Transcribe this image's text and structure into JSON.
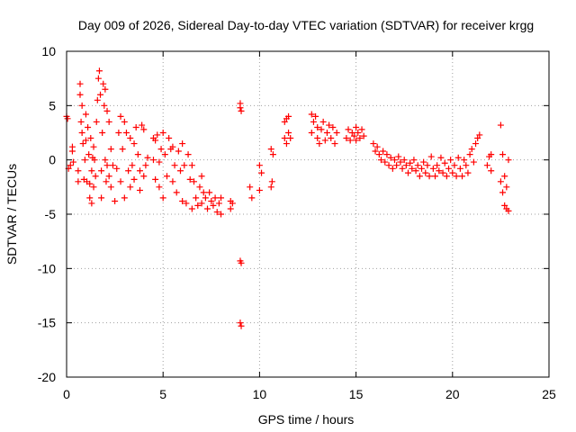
{
  "chart_data": {
    "type": "scatter",
    "title": "Day 009 of 2026, Sidereal Day-to-day VTEC variation (SDTVAR) for receiver krgg",
    "xlabel": "GPS time / hours",
    "ylabel": "SDTVAR / TECUs",
    "xlim": [
      0,
      25
    ],
    "ylim": [
      -20,
      10
    ],
    "xticks": [
      0,
      5,
      10,
      15,
      20,
      25
    ],
    "yticks": [
      -20,
      -15,
      -10,
      -5,
      0,
      5,
      10
    ],
    "grid": true,
    "marker": "plus",
    "color": "#ff0000",
    "series": [
      {
        "name": "SDTVAR",
        "points": [
          [
            0.0,
            4.0
          ],
          [
            0.05,
            3.8
          ],
          [
            0.1,
            -0.8
          ],
          [
            0.2,
            -0.5
          ],
          [
            0.3,
            0.8
          ],
          [
            0.3,
            1.2
          ],
          [
            0.35,
            -0.2
          ],
          [
            0.6,
            -1.0
          ],
          [
            0.6,
            -2.0
          ],
          [
            0.7,
            7.0
          ],
          [
            0.7,
            6.0
          ],
          [
            0.75,
            3.5
          ],
          [
            0.8,
            5.0
          ],
          [
            0.8,
            2.5
          ],
          [
            0.85,
            1.5
          ],
          [
            0.9,
            -1.8
          ],
          [
            0.95,
            0.0
          ],
          [
            1.0,
            4.2
          ],
          [
            1.0,
            1.8
          ],
          [
            1.05,
            -2.0
          ],
          [
            1.1,
            3.0
          ],
          [
            1.15,
            0.5
          ],
          [
            1.2,
            -2.2
          ],
          [
            1.2,
            -3.5
          ],
          [
            1.25,
            2.0
          ],
          [
            1.3,
            -1.0
          ],
          [
            1.3,
            -4.0
          ],
          [
            1.35,
            0.2
          ],
          [
            1.4,
            1.2
          ],
          [
            1.4,
            -2.5
          ],
          [
            1.45,
            0.0
          ],
          [
            1.5,
            -1.5
          ],
          [
            1.55,
            3.5
          ],
          [
            1.6,
            5.5
          ],
          [
            1.65,
            7.5
          ],
          [
            1.7,
            8.2
          ],
          [
            1.75,
            6.0
          ],
          [
            1.8,
            -3.5
          ],
          [
            1.8,
            -1.0
          ],
          [
            1.85,
            2.5
          ],
          [
            1.9,
            7.0
          ],
          [
            1.95,
            5.0
          ],
          [
            2.0,
            6.5
          ],
          [
            2.0,
            0.0
          ],
          [
            2.05,
            -2.0
          ],
          [
            2.1,
            4.5
          ],
          [
            2.1,
            -0.5
          ],
          [
            2.2,
            3.5
          ],
          [
            2.2,
            -1.5
          ],
          [
            2.3,
            1.0
          ],
          [
            2.3,
            -2.5
          ],
          [
            2.4,
            -0.5
          ],
          [
            2.5,
            -3.8
          ],
          [
            2.6,
            -0.8
          ],
          [
            2.7,
            2.5
          ],
          [
            2.8,
            4.0
          ],
          [
            2.8,
            -2.0
          ],
          [
            2.9,
            1.0
          ],
          [
            3.0,
            -3.5
          ],
          [
            3.0,
            3.5
          ],
          [
            3.1,
            2.5
          ],
          [
            3.2,
            -1.0
          ],
          [
            3.3,
            2.0
          ],
          [
            3.3,
            -2.5
          ],
          [
            3.4,
            -0.5
          ],
          [
            3.5,
            1.5
          ],
          [
            3.5,
            -1.8
          ],
          [
            3.6,
            3.0
          ],
          [
            3.7,
            0.5
          ],
          [
            3.8,
            -1.0
          ],
          [
            3.8,
            -2.8
          ],
          [
            3.9,
            3.2
          ],
          [
            4.0,
            2.8
          ],
          [
            4.0,
            -1.5
          ],
          [
            4.1,
            -0.5
          ],
          [
            4.2,
            0.2
          ],
          [
            4.5,
            2.0
          ],
          [
            4.5,
            0.0
          ],
          [
            4.6,
            1.8
          ],
          [
            4.6,
            -1.8
          ],
          [
            4.7,
            2.3
          ],
          [
            4.8,
            -0.2
          ],
          [
            4.8,
            -2.5
          ],
          [
            4.9,
            1.0
          ],
          [
            5.0,
            2.5
          ],
          [
            5.0,
            -3.5
          ],
          [
            5.1,
            0.5
          ],
          [
            5.2,
            -1.5
          ],
          [
            5.3,
            2.0
          ],
          [
            5.4,
            1.0
          ],
          [
            5.5,
            1.2
          ],
          [
            5.5,
            -2.0
          ],
          [
            5.6,
            -0.5
          ],
          [
            5.7,
            -3.0
          ],
          [
            5.8,
            0.8
          ],
          [
            5.9,
            -1.0
          ],
          [
            6.0,
            1.5
          ],
          [
            6.0,
            -3.8
          ],
          [
            6.1,
            -0.5
          ],
          [
            6.2,
            -4.0
          ],
          [
            6.3,
            0.5
          ],
          [
            6.4,
            -1.8
          ],
          [
            6.5,
            -4.5
          ],
          [
            6.5,
            -0.5
          ],
          [
            6.6,
            -2.0
          ],
          [
            6.7,
            -3.5
          ],
          [
            6.8,
            -4.2
          ],
          [
            6.9,
            -2.5
          ],
          [
            7.0,
            -1.5
          ],
          [
            7.0,
            -4.0
          ],
          [
            7.1,
            -3.0
          ],
          [
            7.2,
            -3.5
          ],
          [
            7.3,
            -4.5
          ],
          [
            7.4,
            -3.0
          ],
          [
            7.5,
            -3.8
          ],
          [
            7.6,
            -4.2
          ],
          [
            7.7,
            -3.5
          ],
          [
            7.8,
            -4.8
          ],
          [
            7.9,
            -4.0
          ],
          [
            8.0,
            -5.0
          ],
          [
            8.0,
            -3.5
          ],
          [
            8.5,
            -3.8
          ],
          [
            8.5,
            -4.5
          ],
          [
            8.6,
            -4.0
          ],
          [
            9.0,
            5.2
          ],
          [
            9.0,
            4.8
          ],
          [
            9.05,
            4.5
          ],
          [
            9.0,
            -9.3
          ],
          [
            9.05,
            -9.5
          ],
          [
            9.0,
            -15.0
          ],
          [
            9.05,
            -15.3
          ],
          [
            9.5,
            -2.5
          ],
          [
            9.6,
            -3.5
          ],
          [
            10.0,
            -0.5
          ],
          [
            10.0,
            -2.8
          ],
          [
            10.1,
            -1.2
          ],
          [
            10.6,
            1.0
          ],
          [
            10.6,
            -2.5
          ],
          [
            10.7,
            0.5
          ],
          [
            10.65,
            -2.0
          ],
          [
            11.3,
            2.0
          ],
          [
            11.3,
            3.5
          ],
          [
            11.4,
            1.5
          ],
          [
            11.4,
            3.8
          ],
          [
            11.5,
            2.5
          ],
          [
            11.5,
            4.0
          ],
          [
            11.6,
            2.0
          ],
          [
            12.7,
            4.2
          ],
          [
            12.7,
            2.5
          ],
          [
            12.8,
            3.5
          ],
          [
            12.9,
            4.0
          ],
          [
            13.0,
            2.0
          ],
          [
            13.0,
            3.0
          ],
          [
            13.1,
            1.5
          ],
          [
            13.2,
            2.8
          ],
          [
            13.3,
            3.5
          ],
          [
            13.4,
            1.8
          ],
          [
            13.5,
            2.5
          ],
          [
            13.6,
            3.2
          ],
          [
            13.7,
            2.0
          ],
          [
            13.8,
            3.0
          ],
          [
            13.9,
            1.5
          ],
          [
            14.0,
            2.5
          ],
          [
            14.5,
            2.0
          ],
          [
            14.6,
            2.8
          ],
          [
            14.7,
            1.8
          ],
          [
            14.8,
            2.5
          ],
          [
            14.9,
            2.2
          ],
          [
            15.0,
            3.0
          ],
          [
            15.0,
            1.8
          ],
          [
            15.1,
            2.5
          ],
          [
            15.2,
            2.0
          ],
          [
            15.3,
            2.8
          ],
          [
            15.4,
            2.2
          ],
          [
            15.9,
            1.5
          ],
          [
            16.0,
            0.8
          ],
          [
            16.1,
            1.2
          ],
          [
            16.2,
            0.5
          ],
          [
            16.3,
            0.0
          ],
          [
            16.4,
            0.8
          ],
          [
            16.5,
            -0.2
          ],
          [
            16.6,
            0.5
          ],
          [
            16.7,
            -0.5
          ],
          [
            16.8,
            0.2
          ],
          [
            16.9,
            -0.8
          ],
          [
            17.0,
            0.0
          ],
          [
            17.1,
            -0.5
          ],
          [
            17.2,
            0.3
          ],
          [
            17.3,
            -0.2
          ],
          [
            17.4,
            -0.8
          ],
          [
            17.5,
            0.0
          ],
          [
            17.6,
            -0.5
          ],
          [
            17.7,
            -1.2
          ],
          [
            17.8,
            -0.3
          ],
          [
            17.9,
            -0.8
          ],
          [
            18.0,
            0.0
          ],
          [
            18.1,
            -1.0
          ],
          [
            18.2,
            -0.5
          ],
          [
            18.3,
            -1.5
          ],
          [
            18.4,
            -0.8
          ],
          [
            18.5,
            -0.2
          ],
          [
            18.6,
            -1.2
          ],
          [
            18.7,
            -0.5
          ],
          [
            18.8,
            -1.5
          ],
          [
            18.9,
            0.3
          ],
          [
            19.0,
            -0.8
          ],
          [
            19.1,
            -1.5
          ],
          [
            19.2,
            -0.5
          ],
          [
            19.3,
            -1.0
          ],
          [
            19.4,
            0.2
          ],
          [
            19.5,
            -1.2
          ],
          [
            19.6,
            -0.3
          ],
          [
            19.7,
            -1.5
          ],
          [
            19.8,
            -0.8
          ],
          [
            19.9,
            0.0
          ],
          [
            20.0,
            -1.2
          ],
          [
            20.1,
            -0.5
          ],
          [
            20.2,
            -1.5
          ],
          [
            20.3,
            0.2
          ],
          [
            20.4,
            -0.8
          ],
          [
            20.5,
            -1.5
          ],
          [
            20.6,
            0.0
          ],
          [
            20.7,
            -0.5
          ],
          [
            20.8,
            -1.2
          ],
          [
            20.9,
            0.5
          ],
          [
            21.0,
            1.0
          ],
          [
            21.1,
            -0.2
          ],
          [
            21.2,
            1.5
          ],
          [
            21.3,
            2.0
          ],
          [
            21.4,
            2.3
          ],
          [
            21.8,
            -0.5
          ],
          [
            21.9,
            0.3
          ],
          [
            22.0,
            -1.0
          ],
          [
            22.0,
            0.5
          ],
          [
            22.5,
            3.2
          ],
          [
            22.5,
            -2.0
          ],
          [
            22.6,
            -3.0
          ],
          [
            22.6,
            0.5
          ],
          [
            22.7,
            -4.2
          ],
          [
            22.7,
            -1.5
          ],
          [
            22.8,
            -4.5
          ],
          [
            22.8,
            -2.5
          ],
          [
            22.9,
            -4.7
          ],
          [
            22.9,
            0.0
          ]
        ]
      }
    ]
  }
}
